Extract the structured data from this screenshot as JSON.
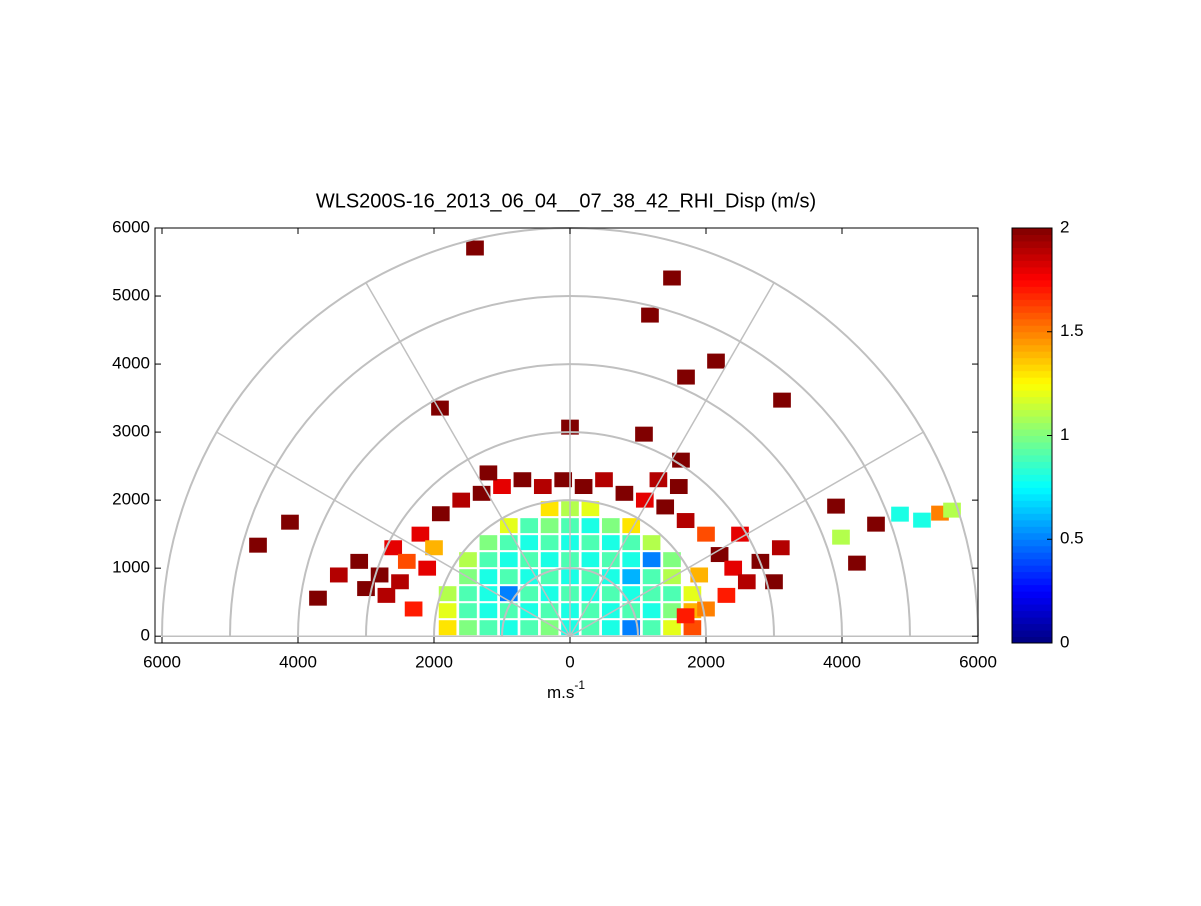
{
  "chart_data": {
    "type": "polar-cells",
    "title": "WLS200S-16_2013_06_04__07_38_42_RHI_Disp (m/s)",
    "xlabel": "m.s",
    "xlabel_superscript": "-1",
    "xlim": [
      -6000,
      6000
    ],
    "ylim": [
      -100,
      6000
    ],
    "xticks": [
      {
        "value": -6000,
        "label": "6000"
      },
      {
        "value": -4000,
        "label": "4000"
      },
      {
        "value": -2000,
        "label": "2000"
      },
      0,
      2000,
      4000,
      6000
    ],
    "yticks": [
      0,
      1000,
      2000,
      3000,
      4000,
      5000,
      6000
    ],
    "rings": [
      1000,
      2000,
      3000,
      4000,
      5000,
      6000
    ],
    "spokes": [
      0,
      30,
      60,
      90,
      120,
      150,
      180
    ],
    "clim": [
      0,
      2
    ],
    "cticks": [
      0,
      0.5,
      1,
      1.5,
      2
    ],
    "colormap": "jet",
    "x": [
      -1800,
      -1500,
      -1200,
      -900,
      -600,
      -300,
      0,
      300,
      600,
      900,
      1200,
      1500,
      1800,
      -1800,
      -1500,
      -1200,
      -900,
      -600,
      -300,
      0,
      300,
      600,
      900,
      1200,
      1500,
      1800,
      -1800,
      -1500,
      -1200,
      -900,
      -600,
      -300,
      0,
      300,
      600,
      900,
      1200,
      1500,
      1800,
      -1500,
      -1200,
      -900,
      -600,
      -300,
      0,
      300,
      600,
      900,
      1200,
      1500,
      -1500,
      -1200,
      -900,
      -600,
      -300,
      0,
      300,
      600,
      900,
      1200,
      1500,
      -1200,
      -900,
      -600,
      -300,
      0,
      300,
      600,
      900,
      1200,
      -900,
      -600,
      -300,
      0,
      300,
      600,
      900,
      -300,
      0,
      300,
      -2800,
      -3100,
      -3400,
      -2600,
      -3000,
      -2400,
      -2200,
      -2700,
      -2300,
      -2500,
      -1900,
      -1600,
      -1300,
      -1000,
      -700,
      -400,
      -100,
      -1200,
      -2000,
      -2100,
      200,
      500,
      800,
      1100,
      1400,
      1700,
      2000,
      2200,
      2400,
      2600,
      2300,
      2000,
      2800,
      3100,
      3000,
      1600,
      1300,
      2500,
      1900,
      1700,
      -1397,
      1500,
      1176,
      2147,
      1706,
      3118,
      -1912,
      0,
      1088,
      1632,
      -4588,
      -4118,
      3912,
      4500,
      4220,
      3985,
      4853,
      5176,
      5441,
      5618,
      -3706
    ],
    "y": [
      125,
      125,
      125,
      125,
      125,
      125,
      125,
      125,
      125,
      125,
      125,
      125,
      125,
      375,
      375,
      375,
      375,
      375,
      375,
      375,
      375,
      375,
      375,
      375,
      375,
      375,
      625,
      625,
      625,
      625,
      625,
      625,
      625,
      625,
      625,
      625,
      625,
      625,
      625,
      875,
      875,
      875,
      875,
      875,
      875,
      875,
      875,
      875,
      875,
      875,
      1125,
      1125,
      1125,
      1125,
      1125,
      1125,
      1125,
      1125,
      1125,
      1125,
      1125,
      1375,
      1375,
      1375,
      1375,
      1375,
      1375,
      1375,
      1375,
      1375,
      1625,
      1625,
      1625,
      1625,
      1625,
      1625,
      1625,
      1875,
      1875,
      1875,
      900,
      1100,
      900,
      1300,
      700,
      1100,
      1500,
      600,
      400,
      800,
      1800,
      2000,
      2100,
      2200,
      2300,
      2200,
      2300,
      2400,
      1300,
      1000,
      2200,
      2300,
      2100,
      2000,
      1900,
      1700,
      1500,
      1200,
      1000,
      800,
      600,
      400,
      1100,
      1300,
      800,
      2200,
      2300,
      1500,
      900,
      300,
      5706,
      5265,
      4720,
      4044,
      3809,
      3470,
      3353,
      3073,
      2970,
      2588,
      1338,
      1676,
      1912,
      1647,
      1074,
      1456,
      1794,
      1706,
      1809,
      1853,
      559
    ],
    "values": [
      1.3,
      1.0,
      0.9,
      0.8,
      0.9,
      1.0,
      0.8,
      0.9,
      0.8,
      0.5,
      0.9,
      1.2,
      1.6,
      1.2,
      0.9,
      0.8,
      0.9,
      0.8,
      0.9,
      0.8,
      0.9,
      0.8,
      0.9,
      0.8,
      1.0,
      1.4,
      1.1,
      0.9,
      0.8,
      0.5,
      0.9,
      0.8,
      0.9,
      0.8,
      0.9,
      0.8,
      0.9,
      0.9,
      1.2,
      1.0,
      0.8,
      0.9,
      0.8,
      0.9,
      0.8,
      0.9,
      0.8,
      0.6,
      0.9,
      1.1,
      1.1,
      0.9,
      0.8,
      0.9,
      0.8,
      0.9,
      0.8,
      0.9,
      0.8,
      0.5,
      1.0,
      1.0,
      0.9,
      0.8,
      0.9,
      0.8,
      0.9,
      0.8,
      0.9,
      1.1,
      1.2,
      0.9,
      1.0,
      0.9,
      0.8,
      1.0,
      1.3,
      1.3,
      1.1,
      1.2,
      2.0,
      2.0,
      1.9,
      1.8,
      2.0,
      1.6,
      1.8,
      1.9,
      1.7,
      1.9,
      2.0,
      1.9,
      2.0,
      1.8,
      2.0,
      1.9,
      2.0,
      2.0,
      1.4,
      1.8,
      2.0,
      1.9,
      2.0,
      1.8,
      2.0,
      1.9,
      1.6,
      2.0,
      1.8,
      1.9,
      1.7,
      1.5,
      2.0,
      1.9,
      2.0,
      2.0,
      1.9,
      1.8,
      1.4,
      1.7,
      2.0,
      2.0,
      2.0,
      2.0,
      2.0,
      2.0,
      2.0,
      2.0,
      2.0,
      2.0,
      2.0,
      2.0,
      2.0,
      2.0,
      2.0,
      1.1,
      0.8,
      0.8,
      1.5,
      1.1,
      2.0
    ]
  }
}
